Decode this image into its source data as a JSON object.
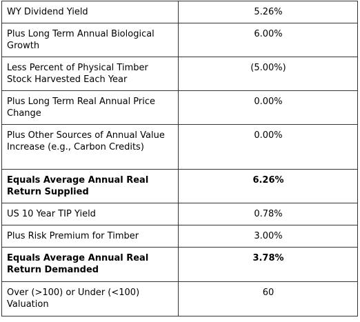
{
  "table": {
    "rows": [
      [
        "WY Dividend Yield",
        "5.26%"
      ],
      [
        "Plus Long Term Annual Biological Growth",
        "6.00%"
      ],
      [
        "Less Percent of Physical Timber Stock Harvested Each Year",
        "(5.00%)"
      ],
      [
        "Plus Long Term Real Annual Price Change",
        "0.00%"
      ],
      [
        "Plus Other Sources of Annual Value Increase (e.g., Carbon Credits)",
        "0.00%"
      ],
      [
        "Equals Average Annual Real Return Supplied",
        "6.26%"
      ],
      [
        "US 10 Year TIP Yield",
        "0.78%"
      ],
      [
        "Plus Risk Premium for Timber",
        "3.00%"
      ],
      [
        "Equals Average Annual Real Return Demanded",
        "3.78%"
      ],
      [
        "Over (>100) or Under (<100) Valuation",
        "60"
      ]
    ]
  }
}
